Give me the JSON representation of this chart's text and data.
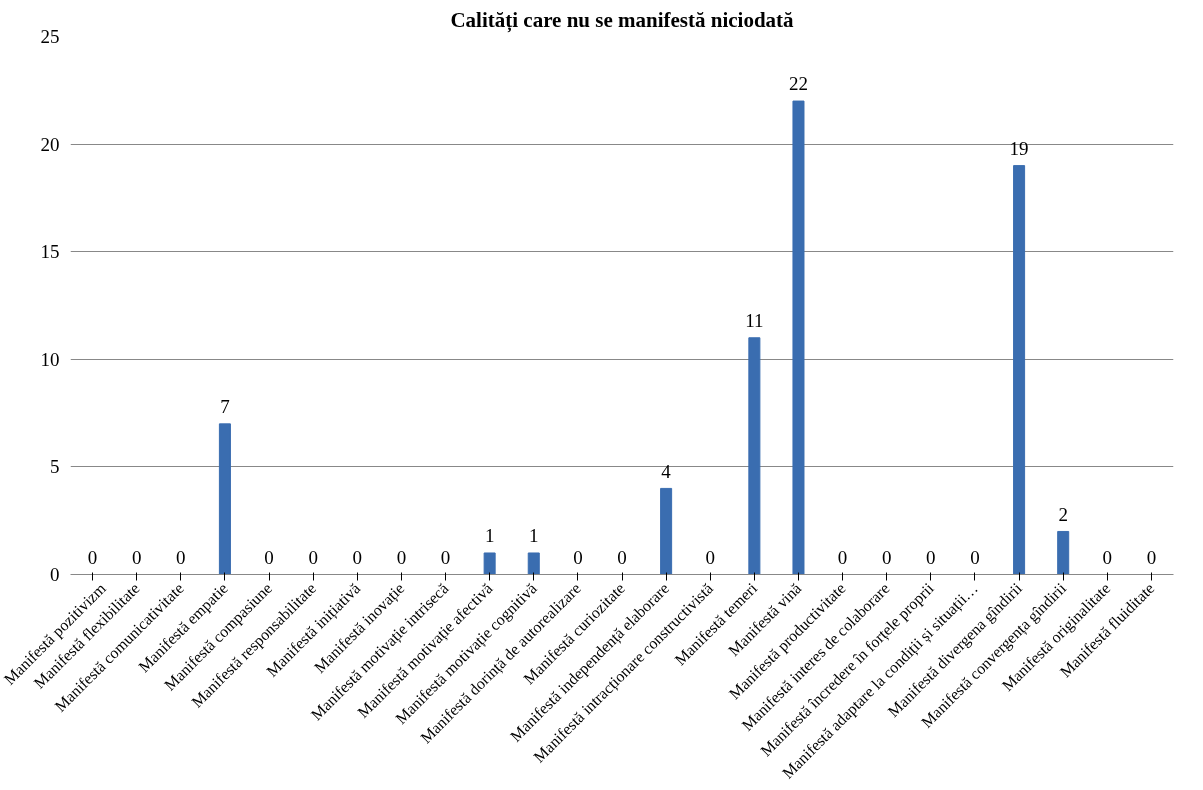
{
  "chart_data": {
    "type": "bar",
    "title": "Calități care nu se manifestă niciodată",
    "categories": [
      "Manifestă pozitivizm",
      "Manifestă flexibilitate",
      "Manifestă comunicativitate",
      "Manifestă empatie",
      "Manifestă compasiune",
      "Manifestă responsabilitate",
      "Manifestă inițiativă",
      "Manifestă inovație",
      "Manifestă motivație intrisecă",
      "Manifestă motivație afectivă",
      "Manifestă motivație cognitivă",
      "Manifestă dorință de autorealizare",
      "Manifestă curiozitate",
      "Manifestă independență elaborare",
      "Manifestă intracționare constructivistă",
      "Manifestă temeri",
      "Manifestă vină",
      "Manifestă productivitate",
      "Manifestă interes de colaborare",
      "Manifestă încredere în forțele proprii",
      "Manifestă adaptare la condiții și situații…",
      "Manifestă divergena gîndirii",
      "Manifestă convergența gîndirii",
      "Manifestă originalitate",
      "Manifestă fluiditate"
    ],
    "values": [
      0,
      0,
      0,
      7,
      0,
      0,
      0,
      0,
      0,
      1,
      1,
      0,
      0,
      4,
      0,
      11,
      22,
      0,
      0,
      0,
      0,
      19,
      2,
      0,
      0
    ],
    "color": "#3a6db0",
    "ylim": [
      0,
      25
    ],
    "yticks": [
      0,
      5,
      10,
      15,
      20,
      25
    ],
    "grid": "y",
    "data_labels": true
  }
}
